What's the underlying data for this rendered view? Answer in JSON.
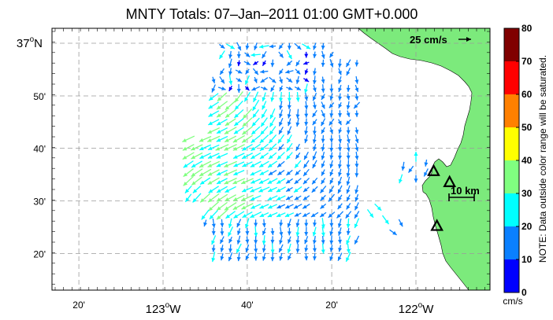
{
  "title": "MNTY Totals: 07–Jan–2011 01:00 GMT+0.000",
  "colors": {
    "land": "#7cea7c",
    "grid": "#9a9a9a",
    "station": "#000000",
    "colorbar": [
      "#0000ff",
      "#0a80ff",
      "#00ffff",
      "#80ff80",
      "#ffff00",
      "#ff8000",
      "#ff0000",
      "#800000"
    ]
  },
  "x_axis": {
    "labels": [
      {
        "text": "20'",
        "lon": -123.333
      },
      {
        "text": "123",
        "deg": "o",
        "hemi": "W",
        "lon": -123.0
      },
      {
        "text": "40'",
        "lon": -122.667
      },
      {
        "text": "20'",
        "lon": -122.333
      },
      {
        "text": "122",
        "deg": "o",
        "hemi": "W",
        "lon": -122.0
      }
    ]
  },
  "y_axis": {
    "labels": [
      {
        "text": "37",
        "deg": "o",
        "hemi": "N",
        "lat": 37.0
      },
      {
        "text": "50'",
        "lat": 36.833
      },
      {
        "text": "40'",
        "lat": 36.667
      },
      {
        "text": "30'",
        "lat": 36.5
      },
      {
        "text": "20'",
        "lat": 36.333
      }
    ]
  },
  "reference_vector": {
    "label": "25 cm/s",
    "speed_cm_s": 25
  },
  "scale_bar": {
    "label": "10 km",
    "km": 10
  },
  "colorbar": {
    "ticks": [
      "0",
      "10",
      "20",
      "30",
      "40",
      "50",
      "60",
      "70",
      "80"
    ],
    "unit": "cm/s",
    "note": "NOTE: Data outside color range will be saturated."
  },
  "stations": [
    {
      "lon": -121.93,
      "lat": 36.594
    },
    {
      "lon": -121.867,
      "lat": 36.559
    },
    {
      "lon": -121.917,
      "lat": 36.42
    }
  ],
  "vector_field": {
    "units": "cm/s",
    "region_note": "offshore grid 122.9W-122.2W, 36.32N-36.99N plus small nearshore cluster"
  }
}
